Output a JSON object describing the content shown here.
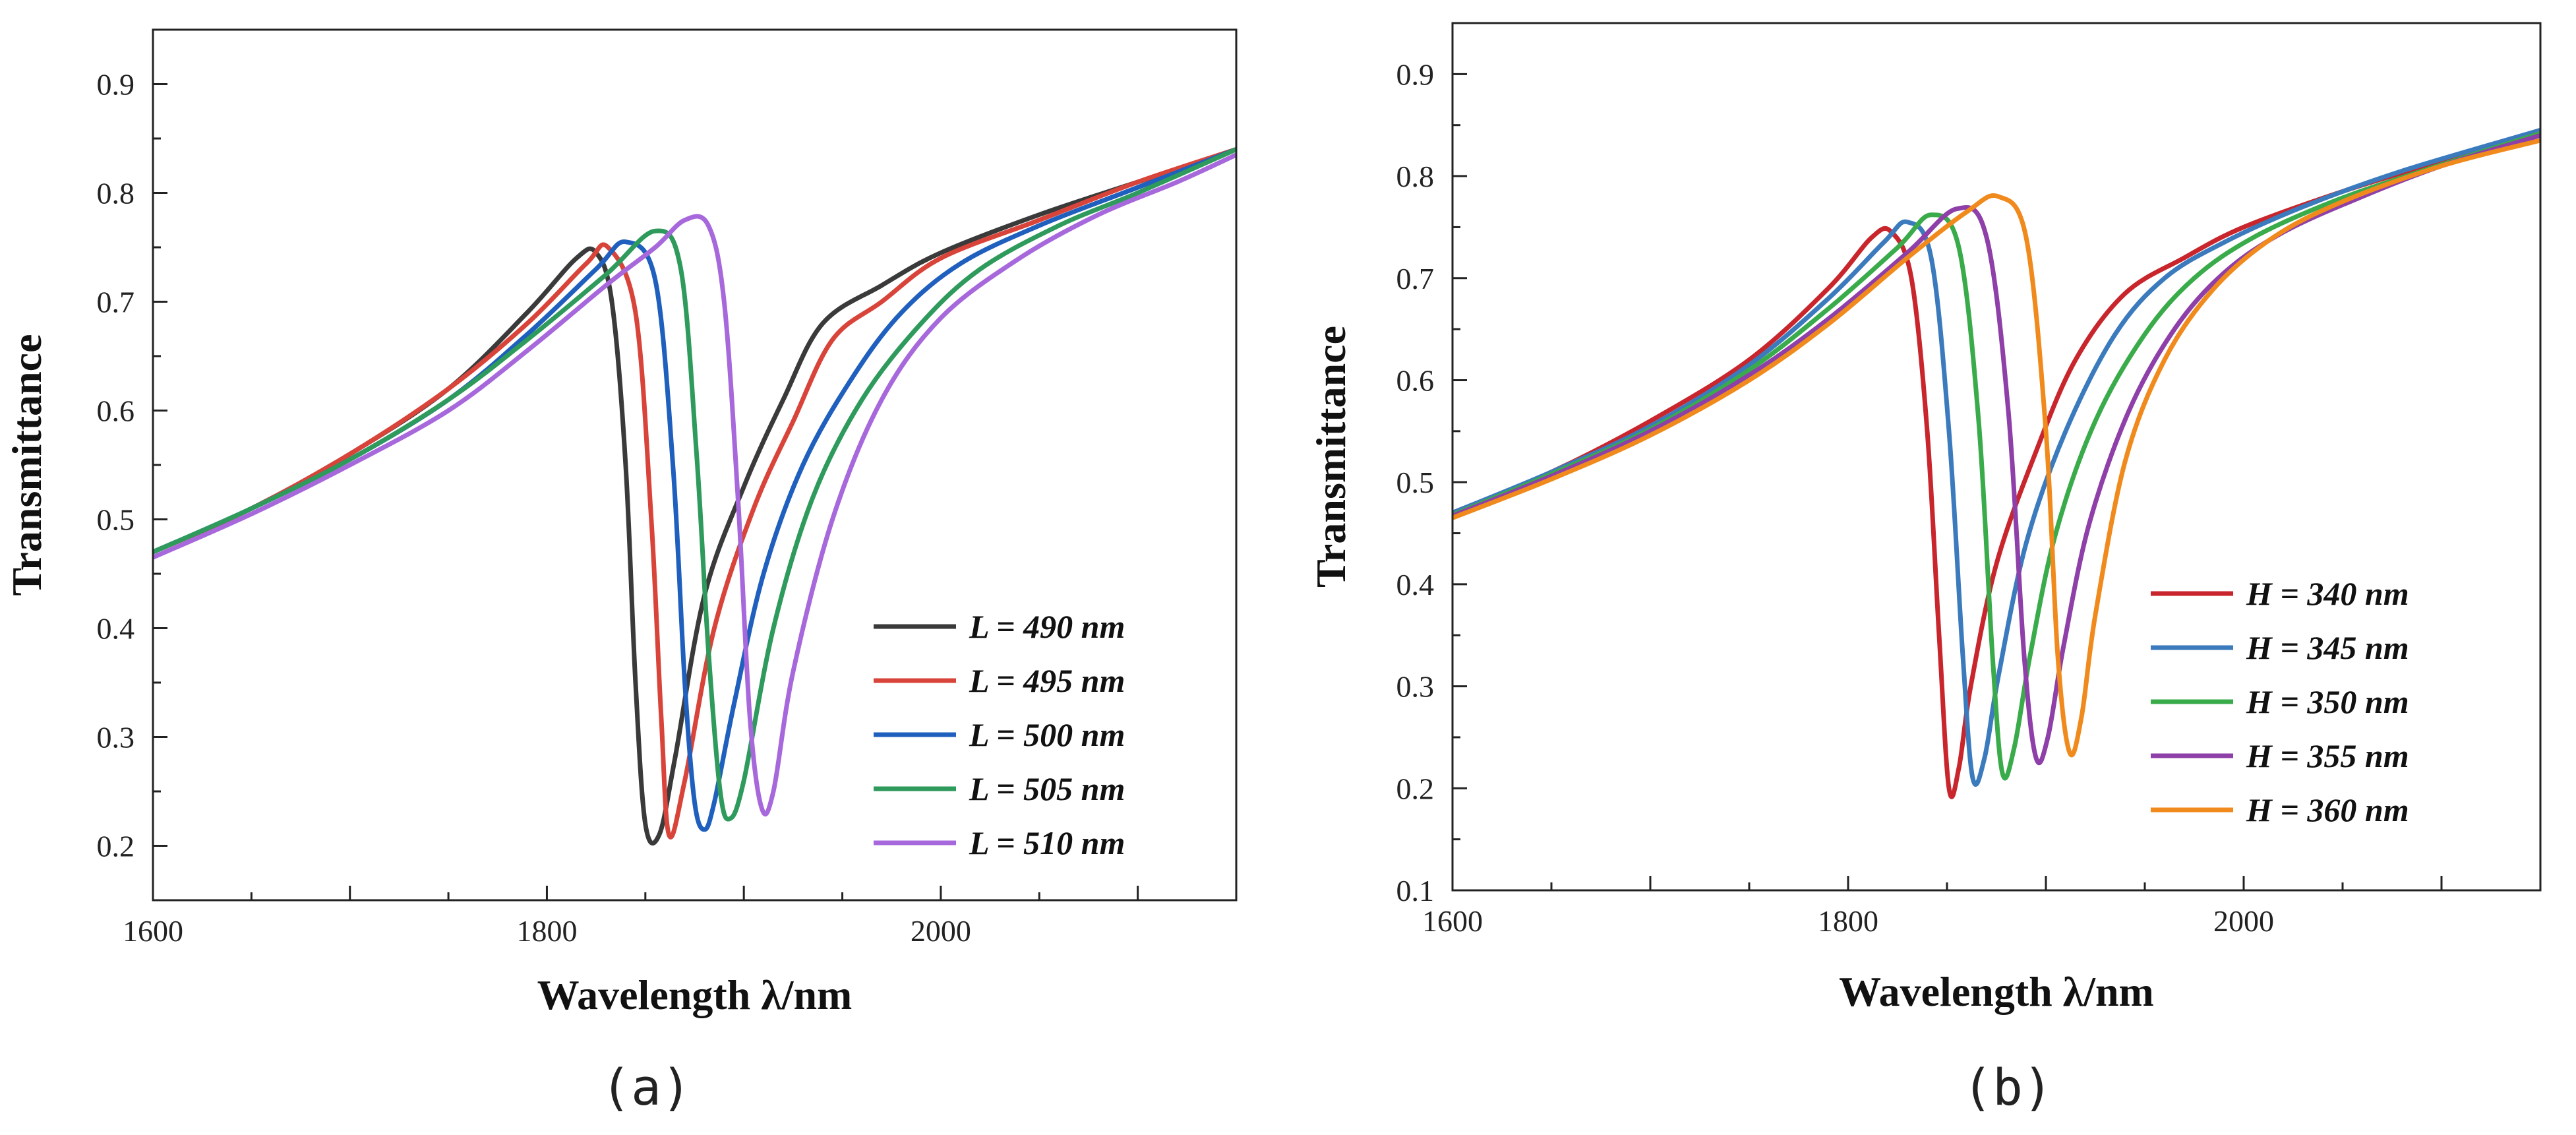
{
  "chart_data": [
    {
      "type": "line",
      "panel": "a",
      "caption": "(a)",
      "xlabel": "Wavelength λ/nm",
      "ylabel": "Transmittance",
      "xlim": [
        1600,
        2150
      ],
      "ylim": [
        0.15,
        0.95
      ],
      "xticks": [
        1600,
        1800,
        2000
      ],
      "xtick_labels": [
        "1600",
        "1800",
        "2000"
      ],
      "yticks": [
        0.2,
        0.3,
        0.4,
        0.5,
        0.6,
        0.7,
        0.8,
        0.9
      ],
      "ytick_labels": [
        "0.2",
        "0.3",
        "0.4",
        "0.5",
        "0.6",
        "0.7",
        "0.8",
        "0.9"
      ],
      "legend_position": "bottom-right",
      "grid": false,
      "series": [
        {
          "name": "L = 490 nm",
          "color": "#3a3a3a",
          "x": [
            1600,
            1650,
            1700,
            1750,
            1790,
            1815,
            1825,
            1833,
            1840,
            1845,
            1850,
            1857,
            1865,
            1880,
            1900,
            1920,
            1940,
            1970,
            2000,
            2050,
            2100,
            2150
          ],
          "y": [
            0.47,
            0.51,
            0.56,
            0.62,
            0.69,
            0.74,
            0.745,
            0.7,
            0.55,
            0.35,
            0.22,
            0.21,
            0.28,
            0.43,
            0.53,
            0.61,
            0.68,
            0.715,
            0.745,
            0.78,
            0.81,
            0.84
          ]
        },
        {
          "name": "L = 495 nm",
          "color": "#d9443a",
          "x": [
            1600,
            1650,
            1700,
            1750,
            1790,
            1820,
            1831,
            1845,
            1853,
            1858,
            1862,
            1870,
            1885,
            1905,
            1925,
            1945,
            1970,
            2000,
            2050,
            2100,
            2150
          ],
          "y": [
            0.47,
            0.51,
            0.56,
            0.62,
            0.68,
            0.735,
            0.75,
            0.69,
            0.5,
            0.32,
            0.21,
            0.26,
            0.4,
            0.51,
            0.59,
            0.665,
            0.7,
            0.74,
            0.775,
            0.81,
            0.84
          ]
        },
        {
          "name": "L = 500 nm",
          "color": "#1f5fbd",
          "x": [
            1600,
            1650,
            1700,
            1750,
            1790,
            1825,
            1840,
            1855,
            1864,
            1870,
            1875,
            1880,
            1885,
            1895,
            1910,
            1930,
            1955,
            1980,
            2010,
            2050,
            2100,
            2150
          ],
          "y": [
            0.47,
            0.51,
            0.555,
            0.61,
            0.67,
            0.73,
            0.755,
            0.72,
            0.55,
            0.35,
            0.24,
            0.215,
            0.24,
            0.33,
            0.45,
            0.55,
            0.63,
            0.69,
            0.735,
            0.77,
            0.805,
            0.84
          ]
        },
        {
          "name": "L = 505 nm",
          "color": "#2e9a5c",
          "x": [
            1600,
            1650,
            1700,
            1750,
            1790,
            1830,
            1855,
            1868,
            1876,
            1882,
            1888,
            1893,
            1900,
            1915,
            1935,
            1960,
            1990,
            2020,
            2060,
            2100,
            2150
          ],
          "y": [
            0.47,
            0.51,
            0.555,
            0.61,
            0.665,
            0.725,
            0.765,
            0.73,
            0.56,
            0.38,
            0.25,
            0.225,
            0.26,
            0.4,
            0.52,
            0.61,
            0.68,
            0.73,
            0.77,
            0.8,
            0.84
          ]
        },
        {
          "name": "L = 510 nm",
          "color": "#a768dc",
          "x": [
            1600,
            1650,
            1700,
            1750,
            1790,
            1830,
            1855,
            1870,
            1882,
            1890,
            1897,
            1903,
            1909,
            1915,
            1925,
            1945,
            1970,
            2000,
            2040,
            2080,
            2120,
            2150
          ],
          "y": [
            0.465,
            0.505,
            0.55,
            0.6,
            0.655,
            0.715,
            0.75,
            0.775,
            0.77,
            0.7,
            0.52,
            0.32,
            0.235,
            0.25,
            0.36,
            0.5,
            0.61,
            0.685,
            0.74,
            0.78,
            0.81,
            0.835
          ]
        }
      ]
    },
    {
      "type": "line",
      "panel": "b",
      "caption": "(b)",
      "xlabel": "Wavelength λ/nm",
      "ylabel": "Transmittance",
      "xlim": [
        1600,
        2150
      ],
      "ylim": [
        0.1,
        0.95
      ],
      "xticks": [
        1600,
        1800,
        2000
      ],
      "xtick_labels": [
        "1600",
        "1800",
        "2000"
      ],
      "yticks": [
        0.1,
        0.2,
        0.3,
        0.4,
        0.5,
        0.6,
        0.7,
        0.8,
        0.9
      ],
      "ytick_labels": [
        "0.1",
        "0.2",
        "0.3",
        "0.4",
        "0.5",
        "0.6",
        "0.7",
        "0.8",
        "0.9"
      ],
      "legend_position": "bottom-right",
      "grid": false,
      "series": [
        {
          "name": "H = 340 nm",
          "color": "#c8262c",
          "x": [
            1600,
            1650,
            1700,
            1750,
            1790,
            1812,
            1822,
            1832,
            1840,
            1846,
            1851,
            1856,
            1862,
            1875,
            1895,
            1915,
            1940,
            1970,
            2000,
            2050,
            2100,
            2150
          ],
          "y": [
            0.47,
            0.51,
            0.56,
            0.62,
            0.69,
            0.74,
            0.745,
            0.7,
            0.55,
            0.35,
            0.2,
            0.22,
            0.3,
            0.42,
            0.53,
            0.62,
            0.685,
            0.72,
            0.75,
            0.785,
            0.815,
            0.845
          ]
        },
        {
          "name": "H = 345 nm",
          "color": "#3b7bbd",
          "x": [
            1600,
            1650,
            1700,
            1750,
            1790,
            1818,
            1830,
            1842,
            1851,
            1858,
            1863,
            1869,
            1876,
            1890,
            1910,
            1935,
            1960,
            1990,
            2030,
            2080,
            2150
          ],
          "y": [
            0.47,
            0.51,
            0.555,
            0.615,
            0.68,
            0.735,
            0.755,
            0.72,
            0.55,
            0.33,
            0.21,
            0.23,
            0.31,
            0.44,
            0.55,
            0.645,
            0.7,
            0.735,
            0.77,
            0.805,
            0.845
          ]
        },
        {
          "name": "H = 350 nm",
          "color": "#3aab4a",
          "x": [
            1600,
            1650,
            1700,
            1750,
            1790,
            1825,
            1842,
            1856,
            1866,
            1873,
            1878,
            1884,
            1892,
            1905,
            1925,
            1950,
            1975,
            2005,
            2045,
            2090,
            2150
          ],
          "y": [
            0.468,
            0.508,
            0.552,
            0.61,
            0.67,
            0.73,
            0.762,
            0.73,
            0.56,
            0.33,
            0.215,
            0.24,
            0.33,
            0.45,
            0.56,
            0.645,
            0.7,
            0.74,
            0.775,
            0.805,
            0.842
          ]
        },
        {
          "name": "H = 355 nm",
          "color": "#8e3fa8",
          "x": [
            1600,
            1650,
            1700,
            1750,
            1790,
            1830,
            1855,
            1870,
            1881,
            1889,
            1895,
            1901,
            1909,
            1922,
            1942,
            1965,
            1990,
            2020,
            2060,
            2100,
            2150
          ],
          "y": [
            0.467,
            0.506,
            0.55,
            0.605,
            0.66,
            0.725,
            0.768,
            0.74,
            0.57,
            0.33,
            0.23,
            0.25,
            0.34,
            0.46,
            0.57,
            0.65,
            0.705,
            0.745,
            0.78,
            0.81,
            0.84
          ]
        },
        {
          "name": "H = 360 nm",
          "color": "#f08a1c",
          "x": [
            1600,
            1650,
            1700,
            1750,
            1790,
            1830,
            1860,
            1876,
            1890,
            1900,
            1906,
            1912,
            1918,
            1925,
            1940,
            1960,
            1985,
            2015,
            2050,
            2100,
            2150
          ],
          "y": [
            0.465,
            0.503,
            0.546,
            0.6,
            0.655,
            0.72,
            0.765,
            0.78,
            0.74,
            0.55,
            0.33,
            0.235,
            0.27,
            0.37,
            0.52,
            0.62,
            0.69,
            0.74,
            0.775,
            0.81,
            0.835
          ]
        }
      ]
    }
  ]
}
